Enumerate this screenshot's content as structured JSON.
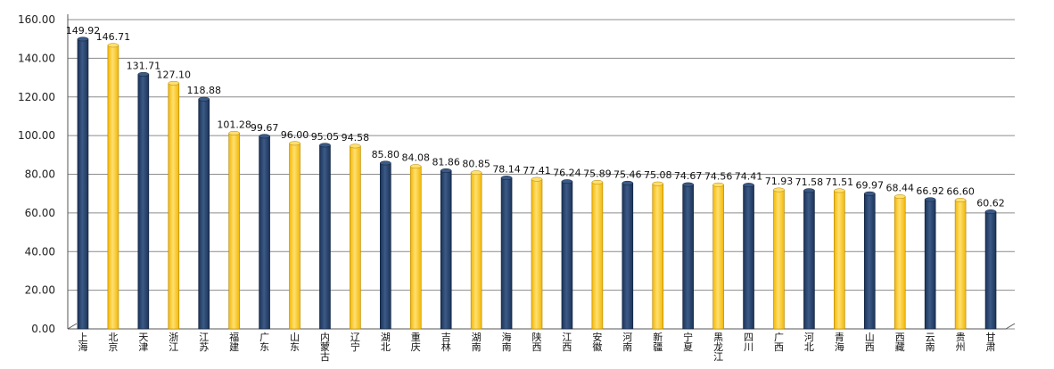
{
  "chart_data": {
    "type": "bar",
    "title": "",
    "xlabel": "",
    "ylabel": "",
    "ylim": [
      0,
      160
    ],
    "yticks": [
      "0.00",
      "20.00",
      "40.00",
      "60.00",
      "80.00",
      "100.00",
      "120.00",
      "140.00",
      "160.00"
    ],
    "grid": true,
    "categories": [
      "上海",
      "北京",
      "天津",
      "浙江",
      "江苏",
      "福建",
      "广东",
      "山东",
      "内蒙古",
      "辽宁",
      "湖北",
      "重庆",
      "吉林",
      "湖南",
      "海南",
      "陕西",
      "江西",
      "安徽",
      "河南",
      "新疆",
      "宁夏",
      "黑龙江",
      "四川",
      "广西",
      "河北",
      "青海",
      "山西",
      "西藏",
      "云南",
      "贵州",
      "甘肃"
    ],
    "values": [
      149.92,
      146.71,
      131.71,
      127.1,
      118.88,
      101.28,
      99.67,
      96.0,
      95.05,
      94.58,
      85.8,
      84.08,
      81.86,
      80.85,
      78.14,
      77.41,
      76.24,
      75.89,
      75.46,
      75.08,
      74.67,
      74.56,
      74.41,
      71.93,
      71.58,
      71.51,
      69.97,
      68.44,
      66.92,
      66.6,
      60.62
    ],
    "value_labels": [
      "149.92",
      "146.71",
      "131.71",
      "127.10",
      "118.88",
      "101.28",
      "99.67",
      "96.00",
      "95.05",
      "94.58",
      "85.80",
      "84.08",
      "81.86",
      "80.85",
      "78.14",
      "77.41",
      "76.24",
      "75.89",
      "75.46",
      "75.08",
      "74.67",
      "74.56",
      "74.41",
      "71.93",
      "71.58",
      "71.51",
      "69.97",
      "68.44",
      "66.92",
      "66.60",
      "60.62"
    ],
    "colors": {
      "navy": "#1b3358",
      "navy_light": "#3c5a86",
      "gold": "#f2b705",
      "gold_light": "#ffe070"
    }
  }
}
